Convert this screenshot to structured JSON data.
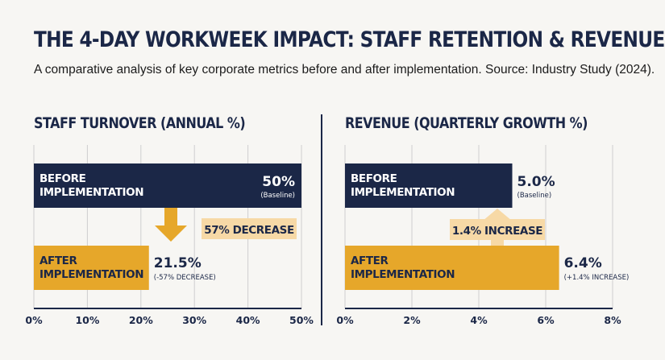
{
  "title": "THE 4-DAY WORKWEEK IMPACT: STAFF RETENTION & REVENUE",
  "subtitle": "A comparative analysis of key corporate metrics before and after implementation. Source: Industry Study (2024).",
  "colors": {
    "navy": "#1b2747",
    "gold": "#e6a72a",
    "callout": "#f7d9a6",
    "grid": "#cfcfcf"
  },
  "icons": {
    "turnover_arrow": "arrow-down-icon",
    "revenue_arrow": "arrow-up-icon"
  },
  "chart_data": [
    {
      "type": "bar",
      "title": "STAFF TURNOVER (ANNUAL %)",
      "orientation": "horizontal",
      "categories": [
        "BEFORE IMPLEMENTATION",
        "AFTER IMPLEMENTATION"
      ],
      "values": [
        50,
        21.5
      ],
      "value_labels": [
        "50%",
        "21.5%"
      ],
      "value_notes": [
        "(Baseline)",
        "(-57% DECREASE)"
      ],
      "bar_colors": [
        "#1b2747",
        "#e6a72a"
      ],
      "xlim": [
        0,
        50
      ],
      "xticks": [
        0,
        10,
        20,
        30,
        40,
        50
      ],
      "xtick_labels": [
        "0%",
        "10%",
        "20%",
        "30%",
        "40%",
        "50%"
      ],
      "grid": true,
      "callout": "57% DECREASE"
    },
    {
      "type": "bar",
      "title": "REVENUE (QUARTERLY GROWTH %)",
      "orientation": "horizontal",
      "categories": [
        "BEFORE IMPLEMENTATION",
        "AFTER IMPLEMENTATION"
      ],
      "values": [
        5.0,
        6.4
      ],
      "value_labels": [
        "5.0%",
        "6.4%"
      ],
      "value_notes": [
        "(Baseline)",
        "(+1.4% INCREASE)"
      ],
      "bar_colors": [
        "#1b2747",
        "#e6a72a"
      ],
      "xlim": [
        0,
        8
      ],
      "xticks": [
        0,
        2,
        4,
        6,
        8
      ],
      "xtick_labels": [
        "0%",
        "2%",
        "4%",
        "6%",
        "8%"
      ],
      "grid": true,
      "callout": "1.4% INCREASE"
    }
  ]
}
